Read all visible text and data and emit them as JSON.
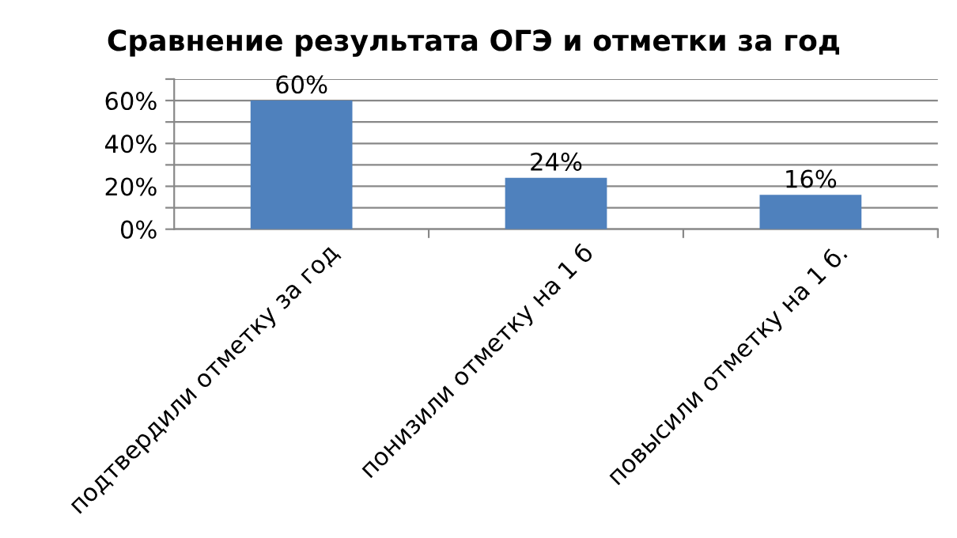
{
  "chart_data": {
    "type": "bar",
    "title": "Сравнение результата ОГЭ и отметки за год",
    "categories": [
      "подтвердили отметку за год",
      "понизили отметку на 1 б",
      "повысили отметку на 1 б."
    ],
    "series": [
      {
        "color": "#4f81bd",
        "values": [
          60,
          24,
          16
        ],
        "value_labels": [
          "60%",
          "24%",
          "16%"
        ]
      }
    ],
    "ylim": [
      0,
      70
    ],
    "yticks": [
      {
        "value": 0,
        "label": "0%"
      },
      {
        "value": 10,
        "label": null
      },
      {
        "value": 20,
        "label": "20%"
      },
      {
        "value": 30,
        "label": null
      },
      {
        "value": 40,
        "label": "40%"
      },
      {
        "value": 50,
        "label": null
      },
      {
        "value": 60,
        "label": "60%"
      },
      {
        "value": 70,
        "label": null
      }
    ],
    "grid": "y"
  }
}
